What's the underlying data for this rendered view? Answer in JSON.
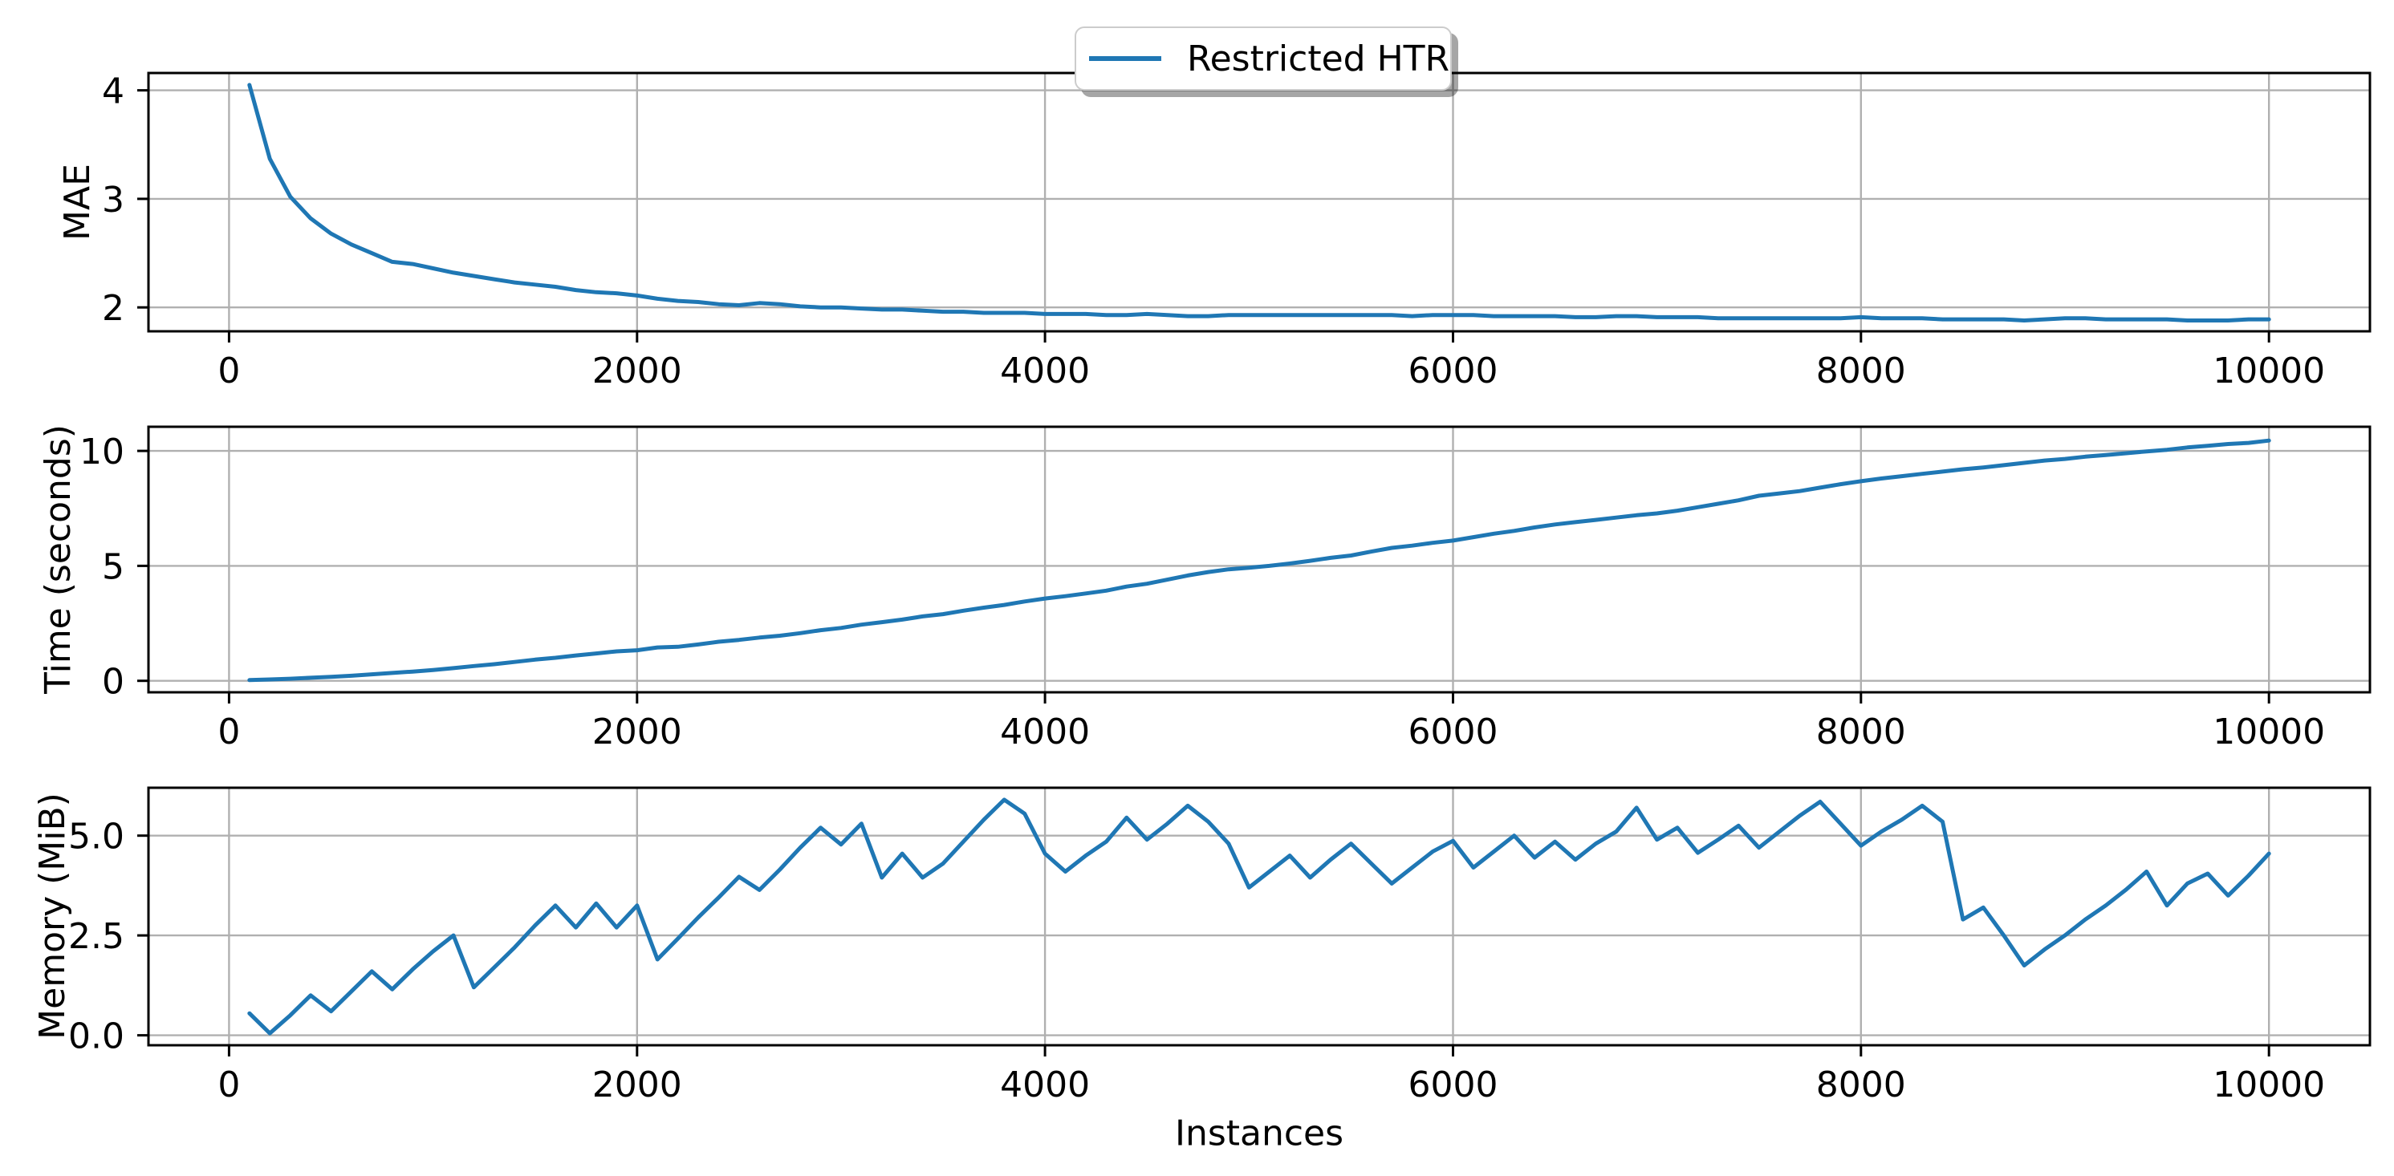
{
  "figure": {
    "background": "#ffffff"
  },
  "legend": {
    "label": "Restricted HTR",
    "line_color": "#1f77b4"
  },
  "xlabel": "Instances",
  "colors": {
    "line": "#1f77b4",
    "grid": "#b0b0b0",
    "spine": "#000000",
    "text": "#000000"
  },
  "chart_data": [
    {
      "type": "line",
      "title": "",
      "ylabel": "MAE",
      "xlabel": "",
      "legend_entry": "Restricted HTR",
      "grid": true,
      "xlim": [
        -395,
        10495
      ],
      "ylim": [
        1.78,
        4.16
      ],
      "xticks": [
        0,
        2000,
        4000,
        6000,
        8000,
        10000
      ],
      "xtick_labels": [
        "0",
        "2000",
        "4000",
        "6000",
        "8000",
        "10000"
      ],
      "yticks": [
        2,
        3,
        4
      ],
      "ytick_labels": [
        "2",
        "3",
        "4"
      ],
      "x": [
        100,
        200,
        300,
        400,
        500,
        600,
        700,
        800,
        900,
        1000,
        1100,
        1200,
        1300,
        1400,
        1500,
        1600,
        1700,
        1800,
        1900,
        2000,
        2100,
        2200,
        2300,
        2400,
        2500,
        2600,
        2700,
        2800,
        2900,
        3000,
        3100,
        3200,
        3300,
        3400,
        3500,
        3600,
        3700,
        3800,
        3900,
        4000,
        4100,
        4200,
        4300,
        4400,
        4500,
        4600,
        4700,
        4800,
        4900,
        5000,
        5100,
        5200,
        5300,
        5400,
        5500,
        5600,
        5700,
        5800,
        5900,
        6000,
        6100,
        6200,
        6300,
        6400,
        6500,
        6600,
        6700,
        6800,
        6900,
        7000,
        7100,
        7200,
        7300,
        7400,
        7500,
        7600,
        7700,
        7800,
        7900,
        8000,
        8100,
        8200,
        8300,
        8400,
        8500,
        8600,
        8700,
        8800,
        8900,
        9000,
        9100,
        9200,
        9300,
        9400,
        9500,
        9600,
        9700,
        9800,
        9900,
        10000
      ],
      "y": [
        4.05,
        3.37,
        3.02,
        2.82,
        2.68,
        2.58,
        2.5,
        2.42,
        2.4,
        2.36,
        2.32,
        2.29,
        2.26,
        2.23,
        2.21,
        2.19,
        2.16,
        2.14,
        2.13,
        2.11,
        2.08,
        2.06,
        2.05,
        2.03,
        2.02,
        2.04,
        2.03,
        2.01,
        2.0,
        2.0,
        1.99,
        1.98,
        1.98,
        1.97,
        1.96,
        1.96,
        1.95,
        1.95,
        1.95,
        1.94,
        1.94,
        1.94,
        1.93,
        1.93,
        1.94,
        1.93,
        1.92,
        1.92,
        1.93,
        1.93,
        1.93,
        1.93,
        1.93,
        1.93,
        1.93,
        1.93,
        1.93,
        1.92,
        1.93,
        1.93,
        1.93,
        1.92,
        1.92,
        1.92,
        1.92,
        1.91,
        1.91,
        1.92,
        1.92,
        1.91,
        1.91,
        1.91,
        1.9,
        1.9,
        1.9,
        1.9,
        1.9,
        1.9,
        1.9,
        1.91,
        1.9,
        1.9,
        1.9,
        1.89,
        1.89,
        1.89,
        1.89,
        1.88,
        1.89,
        1.9,
        1.9,
        1.89,
        1.89,
        1.89,
        1.89,
        1.88,
        1.88,
        1.88,
        1.89,
        1.89
      ]
    },
    {
      "type": "line",
      "title": "",
      "ylabel": "Time (seconds)",
      "xlabel": "",
      "legend_entry": "Restricted HTR",
      "grid": true,
      "xlim": [
        -395,
        10495
      ],
      "ylim": [
        -0.5,
        11.05
      ],
      "xticks": [
        0,
        2000,
        4000,
        6000,
        8000,
        10000
      ],
      "xtick_labels": [
        "0",
        "2000",
        "4000",
        "6000",
        "8000",
        "10000"
      ],
      "yticks": [
        0,
        5,
        10
      ],
      "ytick_labels": [
        "0",
        "5",
        "10"
      ],
      "x": [
        100,
        200,
        300,
        400,
        500,
        600,
        700,
        800,
        900,
        1000,
        1100,
        1200,
        1300,
        1400,
        1500,
        1600,
        1700,
        1800,
        1900,
        2000,
        2100,
        2200,
        2300,
        2400,
        2500,
        2600,
        2700,
        2800,
        2900,
        3000,
        3100,
        3200,
        3300,
        3400,
        3500,
        3600,
        3700,
        3800,
        3900,
        4000,
        4100,
        4200,
        4300,
        4400,
        4500,
        4600,
        4700,
        4800,
        4900,
        5000,
        5100,
        5200,
        5300,
        5400,
        5500,
        5600,
        5700,
        5800,
        5900,
        6000,
        6100,
        6200,
        6300,
        6400,
        6500,
        6600,
        6700,
        6800,
        6900,
        7000,
        7100,
        7200,
        7300,
        7400,
        7500,
        7600,
        7700,
        7800,
        7900,
        8000,
        8100,
        8200,
        8300,
        8400,
        8500,
        8600,
        8700,
        8800,
        8900,
        9000,
        9100,
        9200,
        9300,
        9400,
        9500,
        9600,
        9700,
        9800,
        9900,
        10000
      ],
      "y": [
        0.03,
        0.06,
        0.09,
        0.13,
        0.17,
        0.22,
        0.28,
        0.34,
        0.4,
        0.47,
        0.55,
        0.64,
        0.72,
        0.82,
        0.92,
        1.0,
        1.1,
        1.19,
        1.28,
        1.33,
        1.45,
        1.48,
        1.58,
        1.7,
        1.78,
        1.88,
        1.96,
        2.07,
        2.2,
        2.3,
        2.44,
        2.55,
        2.66,
        2.8,
        2.9,
        3.05,
        3.18,
        3.3,
        3.45,
        3.58,
        3.68,
        3.8,
        3.92,
        4.1,
        4.22,
        4.4,
        4.58,
        4.73,
        4.85,
        4.92,
        5.0,
        5.1,
        5.22,
        5.35,
        5.45,
        5.62,
        5.78,
        5.88,
        6.0,
        6.1,
        6.25,
        6.4,
        6.52,
        6.67,
        6.8,
        6.9,
        7.0,
        7.1,
        7.2,
        7.28,
        7.4,
        7.55,
        7.7,
        7.85,
        8.05,
        8.15,
        8.25,
        8.4,
        8.55,
        8.68,
        8.8,
        8.9,
        9.0,
        9.1,
        9.2,
        9.28,
        9.38,
        9.48,
        9.58,
        9.65,
        9.75,
        9.82,
        9.9,
        9.98,
        10.05,
        10.15,
        10.22,
        10.3,
        10.35,
        10.45
      ]
    },
    {
      "type": "line",
      "title": "",
      "ylabel": "Memory (MiB)",
      "xlabel": "Instances",
      "legend_entry": "Restricted HTR",
      "grid": true,
      "xlim": [
        -395,
        10495
      ],
      "ylim": [
        -0.25,
        6.2
      ],
      "xticks": [
        0,
        2000,
        4000,
        6000,
        8000,
        10000
      ],
      "xtick_labels": [
        "0",
        "2000",
        "4000",
        "6000",
        "8000",
        "10000"
      ],
      "yticks": [
        0,
        2.5,
        5
      ],
      "ytick_labels": [
        "0.0",
        "2.5",
        "5.0"
      ],
      "x": [
        100,
        200,
        300,
        400,
        500,
        600,
        700,
        800,
        900,
        1000,
        1100,
        1200,
        1300,
        1400,
        1500,
        1600,
        1700,
        1800,
        1900,
        2000,
        2100,
        2200,
        2300,
        2400,
        2500,
        2600,
        2700,
        2800,
        2900,
        3000,
        3100,
        3200,
        3300,
        3400,
        3500,
        3600,
        3700,
        3800,
        3900,
        4000,
        4100,
        4200,
        4300,
        4400,
        4500,
        4600,
        4700,
        4800,
        4900,
        5000,
        5100,
        5200,
        5300,
        5400,
        5500,
        5600,
        5700,
        5800,
        5900,
        6000,
        6100,
        6200,
        6300,
        6400,
        6500,
        6600,
        6700,
        6800,
        6900,
        7000,
        7100,
        7200,
        7300,
        7400,
        7500,
        7600,
        7700,
        7800,
        7900,
        8000,
        8100,
        8200,
        8300,
        8400,
        8500,
        8600,
        8700,
        8800,
        8900,
        9000,
        9100,
        9200,
        9300,
        9400,
        9500,
        9600,
        9700,
        9800,
        9900,
        10000
      ],
      "y": [
        0.55,
        0.05,
        0.5,
        1.0,
        0.6,
        1.1,
        1.6,
        1.15,
        1.65,
        2.1,
        2.5,
        1.2,
        1.7,
        2.2,
        2.75,
        3.25,
        2.7,
        3.3,
        2.7,
        3.25,
        1.9,
        2.42,
        2.95,
        3.45,
        3.97,
        3.64,
        4.15,
        4.7,
        5.2,
        4.78,
        5.3,
        3.95,
        4.55,
        3.95,
        4.3,
        4.85,
        5.4,
        5.9,
        5.55,
        4.55,
        4.1,
        4.5,
        4.85,
        5.45,
        4.9,
        5.3,
        5.75,
        5.35,
        4.8,
        3.7,
        4.1,
        4.5,
        3.95,
        4.4,
        4.8,
        4.3,
        3.8,
        4.2,
        4.6,
        4.87,
        4.2,
        4.6,
        5.0,
        4.45,
        4.85,
        4.4,
        4.8,
        5.1,
        5.7,
        4.9,
        5.2,
        4.57,
        4.9,
        5.25,
        4.7,
        5.1,
        5.5,
        5.85,
        5.3,
        4.75,
        5.1,
        5.4,
        5.75,
        5.35,
        2.9,
        3.2,
        2.5,
        1.75,
        2.15,
        2.5,
        2.9,
        3.25,
        3.65,
        4.1,
        3.25,
        3.8,
        4.05,
        3.5,
        4.0,
        4.55
      ]
    }
  ]
}
